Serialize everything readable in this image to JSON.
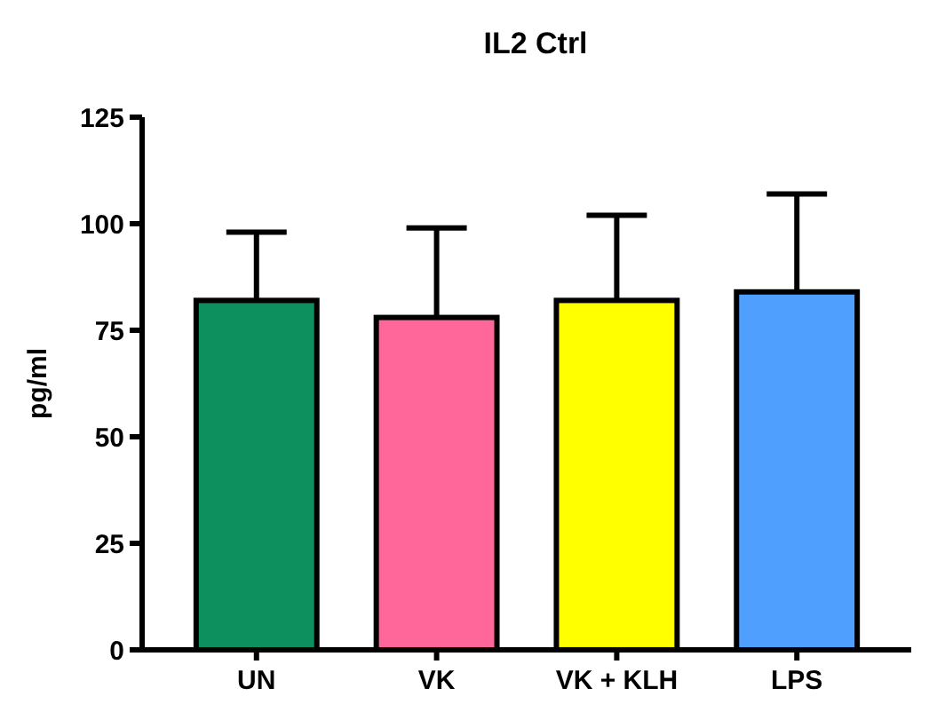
{
  "chart_data": {
    "type": "bar",
    "title": "IL2 Ctrl",
    "ylabel": "pg/ml",
    "categories": [
      "UN",
      "VK",
      "VK + KLH",
      "LPS"
    ],
    "values": [
      82,
      78,
      82,
      84
    ],
    "colors": [
      "#0e8f5e",
      "#ff6699",
      "#ffff00",
      "#4f9fff"
    ],
    "errors": [
      16,
      21,
      20,
      23
    ],
    "ylim": [
      0,
      125
    ],
    "yticks": [
      0,
      25,
      50,
      75,
      100,
      125
    ],
    "grid": false
  }
}
